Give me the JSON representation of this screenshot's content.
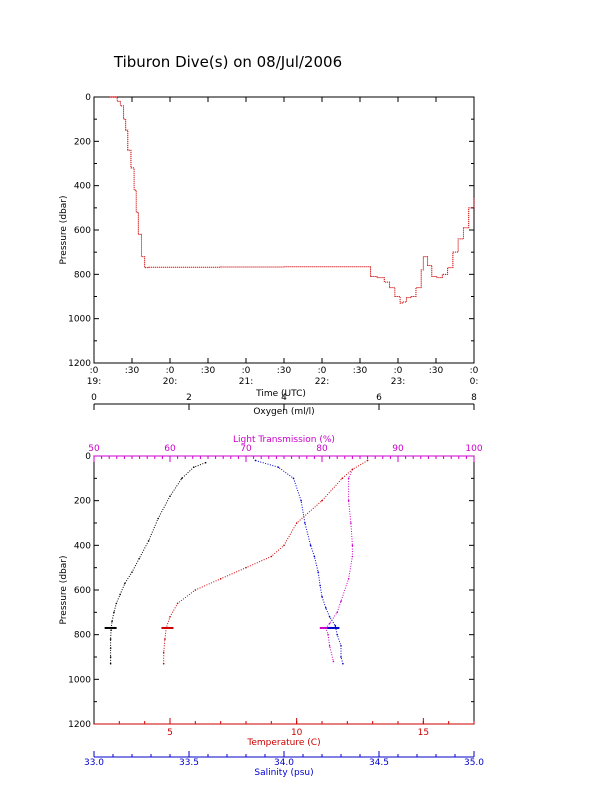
{
  "chart_data": [
    {
      "type": "line",
      "title": "Tiburon Dive(s) on 08/Jul/2006",
      "ylabel": "Pressure (dbar)",
      "xlabel": "Time (UTC)",
      "ylim": [
        1200,
        0
      ],
      "yticks": [
        "0",
        "200",
        "400",
        "600",
        "800",
        "1000",
        "1200"
      ],
      "xlim": [
        "19:00",
        "23:00"
      ],
      "xticks_top": [
        ":0",
        ":30",
        ":0",
        ":30",
        ":0",
        ":30",
        ":0",
        ":30",
        ":0",
        ":30",
        ":0"
      ],
      "xticks_bottom": [
        "19:",
        "20:",
        "21:",
        "22:",
        "23:",
        "0:"
      ],
      "colors": {
        "trace": "#cc0000",
        "axis": "#000000"
      },
      "series": [
        {
          "x_minutes": [
            15,
            18,
            22,
            25,
            28,
            30,
            32,
            35,
            38,
            40,
            42,
            45,
            48,
            50,
            52,
            55,
            58,
            60,
            65,
            80,
            100,
            120,
            140,
            160,
            180,
            200,
            220,
            240,
            260,
            262,
            268,
            275,
            280,
            285,
            290,
            292,
            296,
            300,
            305,
            310,
            312,
            316,
            320,
            325,
            330,
            335,
            340,
            345,
            350,
            355,
            360
          ],
          "pressure": [
            0,
            0,
            20,
            40,
            100,
            150,
            240,
            320,
            420,
            520,
            620,
            720,
            770,
            770,
            768,
            768,
            768,
            768,
            768,
            768,
            768,
            767,
            767,
            767,
            766,
            766,
            766,
            766,
            766,
            810,
            815,
            835,
            860,
            900,
            930,
            925,
            905,
            900,
            860,
            780,
            720,
            760,
            810,
            815,
            800,
            770,
            700,
            640,
            590,
            500,
            455
          ]
        }
      ]
    },
    {
      "type": "scatter",
      "ylabel": "Pressure (dbar)",
      "ylim": [
        1200,
        0
      ],
      "yticks": [
        "0",
        "200",
        "400",
        "600",
        "800",
        "1000",
        "1200"
      ],
      "axes": {
        "oxygen": {
          "label": "Oxygen (ml/l)",
          "range": [
            0,
            8
          ],
          "ticks": [
            "0",
            "2",
            "4",
            "6",
            "8"
          ],
          "color": "#000000"
        },
        "light": {
          "label": "Light Transmission (%)",
          "range": [
            50,
            100
          ],
          "ticks": [
            "50",
            "60",
            "70",
            "80",
            "90",
            "100"
          ],
          "color": "#cc00cc"
        },
        "temperature": {
          "label": "Temperature (C)",
          "range": [
            2,
            17
          ],
          "ticks": [
            "5",
            "10",
            "15"
          ],
          "color": "#cc0000"
        },
        "salinity": {
          "label": "Salinity (psu)",
          "range": [
            33.0,
            35.0
          ],
          "ticks": [
            "33.0",
            "33.5",
            "34.0",
            "34.5",
            "35.0"
          ],
          "color": "#0000cc"
        }
      },
      "series": [
        {
          "name": "Oxygen",
          "axis": "oxygen",
          "color": "#000000",
          "x": [
            2.35,
            2.1,
            1.85,
            1.6,
            1.35,
            1.15,
            0.95,
            0.8,
            0.65,
            0.55,
            0.47,
            0.42,
            0.38,
            0.36,
            0.35,
            0.35,
            0.35,
            0.35
          ],
          "y": [
            30,
            50,
            100,
            180,
            280,
            380,
            460,
            520,
            570,
            620,
            660,
            700,
            740,
            780,
            820,
            860,
            900,
            930
          ]
        },
        {
          "name": "Light Transmission",
          "axis": "light",
          "color": "#cc00cc",
          "x": [
            84.0,
            83.5,
            83.5,
            83.8,
            84.0,
            84.0,
            83.5,
            82.5,
            82.0,
            81.0,
            80.5,
            80.8,
            81.0,
            81.5
          ],
          "y": [
            60,
            100,
            200,
            300,
            400,
            450,
            550,
            650,
            700,
            750,
            770,
            800,
            850,
            920
          ]
        },
        {
          "name": "Temperature",
          "axis": "temperature",
          "color": "#cc0000",
          "x": [
            12.8,
            12.2,
            11.8,
            11.0,
            10.0,
            9.5,
            9.0,
            8.0,
            7.0,
            6.0,
            5.3,
            5.0,
            4.85,
            4.8,
            4.75,
            4.75
          ],
          "y": [
            20,
            60,
            100,
            200,
            300,
            400,
            450,
            500,
            550,
            600,
            660,
            720,
            770,
            820,
            880,
            930
          ]
        },
        {
          "name": "Salinity",
          "axis": "salinity",
          "color": "#0000cc",
          "x": [
            33.85,
            33.97,
            34.05,
            34.09,
            34.11,
            34.14,
            34.16,
            34.18,
            34.19,
            34.2,
            34.22,
            34.24,
            34.27,
            34.28,
            34.3,
            34.3,
            34.31
          ],
          "y": [
            20,
            50,
            100,
            200,
            300,
            400,
            450,
            520,
            580,
            630,
            680,
            720,
            760,
            800,
            850,
            900,
            930
          ]
        }
      ]
    }
  ]
}
